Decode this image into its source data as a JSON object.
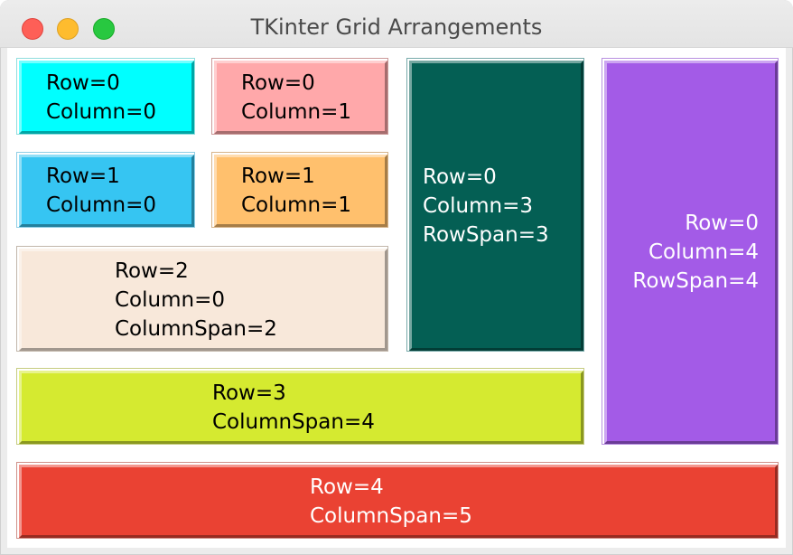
{
  "window": {
    "title": "TKinter Grid Arrangements"
  },
  "labels": [
    {
      "id": "r0c0",
      "lines": [
        "Row=0",
        "Column=0"
      ],
      "bg": "#00ffff",
      "fg": "#000000"
    },
    {
      "id": "r0c1",
      "lines": [
        "Row=0",
        "Column=1"
      ],
      "bg": "#ffa8aa",
      "fg": "#000000"
    },
    {
      "id": "r0c3",
      "lines": [
        "Row=0",
        "Column=3",
        "RowSpan=3"
      ],
      "bg": "#045f54",
      "fg": "#ffffff"
    },
    {
      "id": "r0c4",
      "lines": [
        "Row=0",
        "Column=4",
        "RowSpan=4"
      ],
      "bg": "#a35be7",
      "fg": "#ffffff"
    },
    {
      "id": "r1c0",
      "lines": [
        "Row=1",
        "Column=0"
      ],
      "bg": "#36c5f2",
      "fg": "#000000"
    },
    {
      "id": "r1c1",
      "lines": [
        "Row=1",
        "Column=1"
      ],
      "bg": "#ffc06d",
      "fg": "#000000"
    },
    {
      "id": "r2c0",
      "lines": [
        "Row=2",
        "Column=0",
        "ColumnSpan=2"
      ],
      "bg": "#f8e8da",
      "fg": "#000000"
    },
    {
      "id": "r3",
      "lines": [
        "Row=3",
        "ColumnSpan=4"
      ],
      "bg": "#d5ea30",
      "fg": "#000000"
    },
    {
      "id": "r4",
      "lines": [
        "Row=4",
        "ColumnSpan=5"
      ],
      "bg": "#ea4233",
      "fg": "#ffffff"
    }
  ]
}
